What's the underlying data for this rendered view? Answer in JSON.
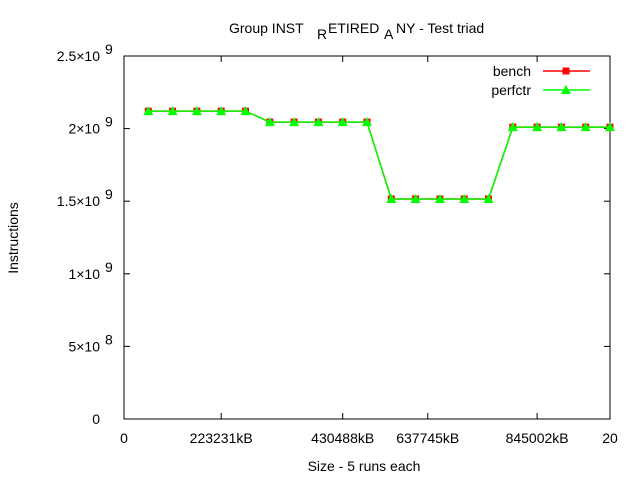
{
  "chart_data": {
    "type": "line",
    "title": "Group INST_RETIRED_ANY - Test triad",
    "title_parts": [
      "Group INST",
      "R",
      "ETIRED",
      "A",
      "NY - Test triad"
    ],
    "xlabel": "Size - 5 runs each",
    "ylabel": "Instructions",
    "xlim": [
      0,
      20
    ],
    "ylim": [
      0,
      2500000000
    ],
    "x_ticks": [
      {
        "x": 0,
        "label": "0"
      },
      {
        "x": 4,
        "label": "223231kB"
      },
      {
        "x": 9,
        "label": "430488kB"
      },
      {
        "x": 12.5,
        "label": "637745kB"
      },
      {
        "x": 17,
        "label": "845002kB"
      },
      {
        "x": 20,
        "label": "20"
      }
    ],
    "y_ticks": [
      {
        "y": 0,
        "mantissa": "0",
        "exp": ""
      },
      {
        "y": 500000000,
        "mantissa": "5×10",
        "exp": "8"
      },
      {
        "y": 1000000000,
        "mantissa": "1×10",
        "exp": "9"
      },
      {
        "y": 1500000000,
        "mantissa": "1.5×10",
        "exp": "9"
      },
      {
        "y": 2000000000,
        "mantissa": "2×10",
        "exp": "9"
      },
      {
        "y": 2500000000,
        "mantissa": "2.5×10",
        "exp": "9"
      }
    ],
    "x": [
      1,
      2,
      3,
      4,
      5,
      6,
      7,
      8,
      9,
      10,
      11,
      12,
      13,
      14,
      15,
      16,
      17,
      18,
      19,
      20
    ],
    "series": [
      {
        "name": "bench",
        "color": "#ff0000",
        "marker": "square",
        "values": [
          2120000000,
          2120000000,
          2120000000,
          2120000000,
          2120000000,
          2045000000,
          2045000000,
          2045000000,
          2045000000,
          2045000000,
          1515000000,
          1515000000,
          1515000000,
          1515000000,
          1515000000,
          2010000000,
          2010000000,
          2010000000,
          2010000000,
          2010000000
        ]
      },
      {
        "name": "perfctr",
        "color": "#00ff00",
        "marker": "triangle",
        "values": [
          2120000000,
          2120000000,
          2120000000,
          2120000000,
          2120000000,
          2045000000,
          2045000000,
          2045000000,
          2045000000,
          2045000000,
          1515000000,
          1515000000,
          1515000000,
          1515000000,
          1515000000,
          2010000000,
          2010000000,
          2010000000,
          2010000000,
          2010000000
        ]
      }
    ],
    "legend_position": "top-right",
    "grid": false
  }
}
